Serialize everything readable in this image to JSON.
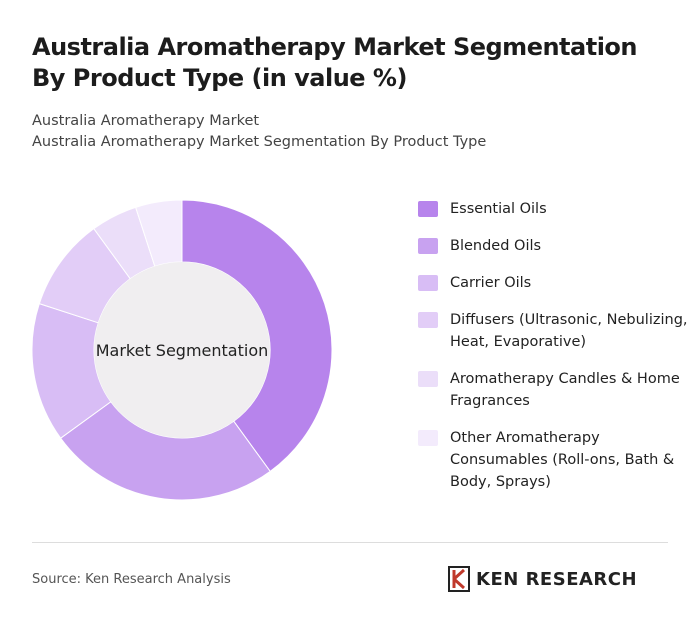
{
  "chart_data": {
    "type": "donut",
    "title": "Australia Aromatherapy Market Segmentation By Product Type (in value %)",
    "subtitles": [
      "Australia Aromatherapy Market",
      "Australia Aromatherapy Market Segmentation By Product Type"
    ],
    "center_label": "Market Segmentation",
    "categories": [
      "Essential Oils",
      "Blended Oils",
      "Carrier Oils",
      "Diffusers (Ultrasonic, Nebulizing, Heat, Evaporative)",
      "Aromatherapy Candles & Home Fragrances",
      "Other Aromatherapy Consumables (Roll-ons, Bath & Body, Sprays)"
    ],
    "values": [
      40,
      25,
      15,
      10,
      5,
      5
    ],
    "colors": [
      "#b784ec",
      "#c8a2f0",
      "#d8bdf5",
      "#e2cdf7",
      "#ebdef9",
      "#f3ebfc"
    ],
    "source": "Source: Ken Research Analysis",
    "brand": "KEN RESEARCH"
  }
}
